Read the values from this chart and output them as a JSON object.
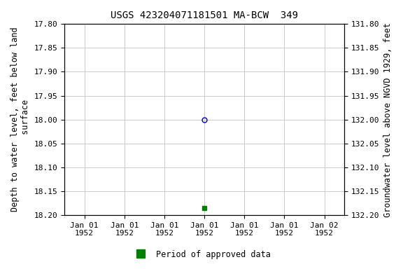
{
  "title": "USGS 423204071181501 MA-BCW  349",
  "ylabel_left": "Depth to water level, feet below land\n surface",
  "ylabel_right": "Groundwater level above NGVD 1929, feet",
  "ylim_left": [
    17.8,
    18.2
  ],
  "ylim_right": [
    131.8,
    132.2
  ],
  "yticks_left": [
    17.8,
    17.85,
    17.9,
    17.95,
    18.0,
    18.05,
    18.1,
    18.15,
    18.2
  ],
  "yticks_right": [
    131.8,
    131.85,
    131.9,
    131.95,
    132.0,
    132.05,
    132.1,
    132.15,
    132.2
  ],
  "data_point_x": 3,
  "data_point_depth": 18.0,
  "data_point_marker": "o",
  "data_point_color": "#0000cc",
  "data_point_facecolor": "none",
  "data_point_size": 5,
  "green_point_x": 3,
  "green_point_depth": 18.185,
  "green_point_color": "#008000",
  "green_point_marker": "s",
  "green_point_size": 4,
  "legend_label": "Period of approved data",
  "legend_color": "#008000",
  "background_color": "#ffffff",
  "grid_color": "#cccccc",
  "font_family": "monospace",
  "title_fontsize": 10,
  "label_fontsize": 8.5,
  "tick_fontsize": 8,
  "xlim": [
    -0.5,
    6.5
  ],
  "xtick_positions": [
    0,
    1,
    2,
    3,
    4,
    5,
    6
  ],
  "xtick_labels": [
    "Jan 01\n1952",
    "Jan 01\n1952",
    "Jan 01\n1952",
    "Jan 01\n1952",
    "Jan 01\n1952",
    "Jan 01\n1952",
    "Jan 02\n1952"
  ]
}
